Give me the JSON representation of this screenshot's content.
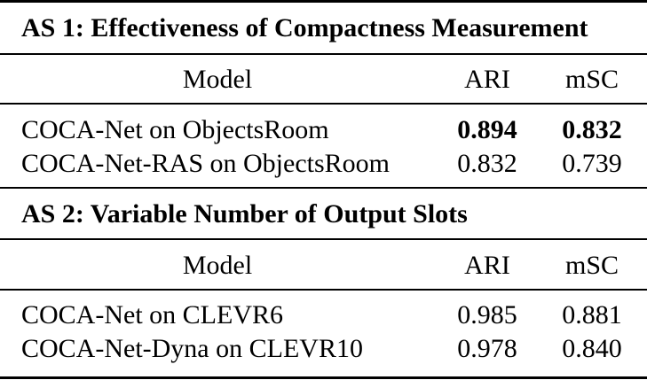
{
  "sections": [
    {
      "title": "AS 1: Effectiveness of Compactness Measurement",
      "header": {
        "model": "Model",
        "ari": "ARI",
        "msc": "mSC"
      },
      "rows": [
        {
          "model": "COCA-Net on ObjectsRoom",
          "ari": "0.894",
          "msc": "0.832",
          "bold": true
        },
        {
          "model": "COCA-Net-RAS on ObjectsRoom",
          "ari": "0.832",
          "msc": "0.739",
          "bold": false
        }
      ]
    },
    {
      "title": "AS 2: Variable Number of Output Slots",
      "header": {
        "model": "Model",
        "ari": "ARI",
        "msc": "mSC"
      },
      "rows": [
        {
          "model": "COCA-Net on CLEVR6",
          "ari": "0.985",
          "msc": "0.881",
          "bold": false
        },
        {
          "model": "COCA-Net-Dyna on CLEVR10",
          "ari": "0.978",
          "msc": "0.840",
          "bold": false
        }
      ]
    }
  ]
}
